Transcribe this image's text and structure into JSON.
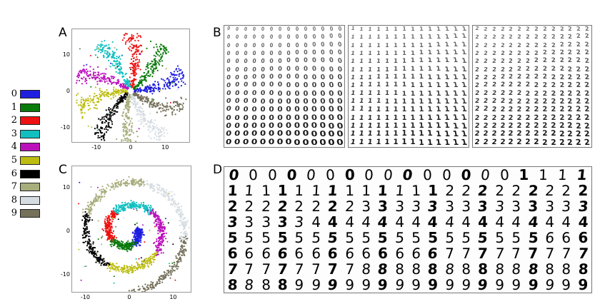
{
  "panels": {
    "a": "A",
    "b": "B",
    "c": "C",
    "d": "D"
  },
  "legend": [
    {
      "label": "0",
      "color": "#1f1fe0"
    },
    {
      "label": "1",
      "color": "#0a7a0a"
    },
    {
      "label": "2",
      "color": "#ee1111"
    },
    {
      "label": "3",
      "color": "#11bfbf"
    },
    {
      "label": "4",
      "color": "#bb11bb"
    },
    {
      "label": "5",
      "color": "#bdbd11"
    },
    {
      "label": "6",
      "color": "#000000"
    },
    {
      "label": "7",
      "color": "#a8ad7c"
    },
    {
      "label": "8",
      "color": "#d6dde2"
    },
    {
      "label": "9",
      "color": "#75705a"
    }
  ],
  "chart_data": [
    {
      "type": "scatter",
      "panel": "A",
      "title": "",
      "xlabel": "",
      "ylabel": "",
      "xlim": [
        -17,
        17
      ],
      "ylim": [
        -14,
        17
      ],
      "xticks": [
        "-10",
        "0",
        "10"
      ],
      "yticks": [
        "10",
        "0",
        "-10"
      ],
      "xtick_values": [
        -10,
        0,
        10
      ],
      "ytick_values": [
        10,
        0,
        -10
      ],
      "series": [
        {
          "name": "0",
          "color": "#1f1fe0",
          "angle_deg": 0
        },
        {
          "name": "1",
          "color": "#0a7a0a",
          "angle_deg": 36
        },
        {
          "name": "2",
          "color": "#ee1111",
          "angle_deg": 72
        },
        {
          "name": "3",
          "color": "#11bfbf",
          "angle_deg": 108
        },
        {
          "name": "4",
          "color": "#bb11bb",
          "angle_deg": 144
        },
        {
          "name": "5",
          "color": "#bdbd11",
          "angle_deg": 180
        },
        {
          "name": "6",
          "color": "#000000",
          "angle_deg": 216
        },
        {
          "name": "7",
          "color": "#a8ad7c",
          "angle_deg": 252
        },
        {
          "name": "8",
          "color": "#d6dde2",
          "angle_deg": 288
        },
        {
          "name": "9",
          "color": "#75705a",
          "angle_deg": 324
        }
      ],
      "arm_length": 15
    },
    {
      "type": "scatter",
      "panel": "C",
      "title": "",
      "xlabel": "",
      "ylabel": "",
      "xlim": [
        -13,
        14
      ],
      "ylim": [
        -14,
        15
      ],
      "xticks": [
        "-10",
        "0",
        "10"
      ],
      "yticks": [
        "10",
        "0",
        "-10"
      ],
      "xtick_values": [
        -10,
        0,
        10
      ],
      "ytick_values": [
        10,
        0,
        -10
      ],
      "series": [
        {
          "name": "0",
          "color": "#1f1fe0"
        },
        {
          "name": "1",
          "color": "#0a7a0a"
        },
        {
          "name": "2",
          "color": "#ee1111"
        },
        {
          "name": "3",
          "color": "#11bfbf"
        },
        {
          "name": "4",
          "color": "#bb11bb"
        },
        {
          "name": "5",
          "color": "#bdbd11"
        },
        {
          "name": "6",
          "color": "#000000"
        },
        {
          "name": "7",
          "color": "#a8ad7c"
        },
        {
          "name": "8",
          "color": "#d6dde2"
        },
        {
          "name": "9",
          "color": "#75705a"
        }
      ]
    }
  ],
  "panel_b": {
    "grids": [
      {
        "digit": "0",
        "rows": 15,
        "cols": 14
      },
      {
        "digit": "1",
        "rows": 15,
        "cols": 14
      },
      {
        "digit": "2",
        "rows": 15,
        "cols": 14
      }
    ]
  },
  "panel_d": {
    "rows": [
      "0000000000000001111",
      "1111111111111222222222",
      "2222222233333333333333",
      "3333344444444444444444",
      "5555555555555555555666",
      "6666666666666777777777",
      "7777777788888888888888",
      "8888999999999999999999"
    ]
  }
}
